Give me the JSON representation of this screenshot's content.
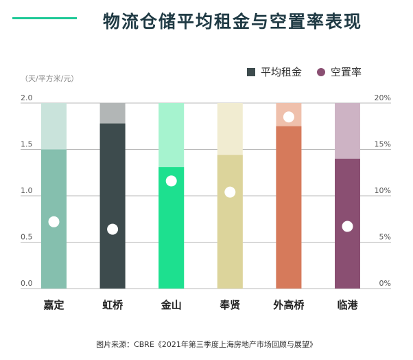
{
  "header": {
    "title": "物流仓储平均租金与空置率表现"
  },
  "legend": {
    "rent_label": "平均租金",
    "vacancy_label": "空置率"
  },
  "source": "图片来源：CBRE《2021年第三季度上海房地产市场回顾与展望》",
  "colors": {
    "accent": "#20c997",
    "rent_legend": "#3d4b4d",
    "vacancy_legend": "#8a4f72"
  },
  "chart_data": {
    "type": "bar",
    "title": "物流仓储平均租金与空置率表现",
    "y_left_label": "（天/平方米/元）",
    "y_left_ticks": [
      "0.0",
      "0.5",
      "1.0",
      "1.5",
      "2.0"
    ],
    "y_right_ticks": [
      "0%",
      "5%",
      "10%",
      "15%",
      "20%"
    ],
    "ylim_left": [
      0,
      2.0
    ],
    "ylim_right": [
      0,
      20
    ],
    "categories": [
      "嘉定",
      "虹桥",
      "金山",
      "奉贤",
      "外高桥",
      "临港"
    ],
    "series": [
      {
        "name": "平均租金",
        "type": "bar",
        "values": [
          1.5,
          1.78,
          1.31,
          1.44,
          1.75,
          1.4
        ]
      },
      {
        "name": "空置率",
        "type": "scatter",
        "values": [
          7.2,
          6.4,
          11.6,
          10.4,
          18.5,
          6.7
        ]
      }
    ],
    "bar_colors": [
      "#85bfae",
      "#3d4b4d",
      "#1de08f",
      "#dcd49b",
      "#d67a5b",
      "#8a4f72"
    ],
    "bar_bg_colors": [
      "#c9e3db",
      "#b2b6b6",
      "#a6f3cf",
      "#f1ecd1",
      "#efc0ac",
      "#cdb3c4"
    ],
    "grid": true,
    "legend_position": "top-right"
  }
}
